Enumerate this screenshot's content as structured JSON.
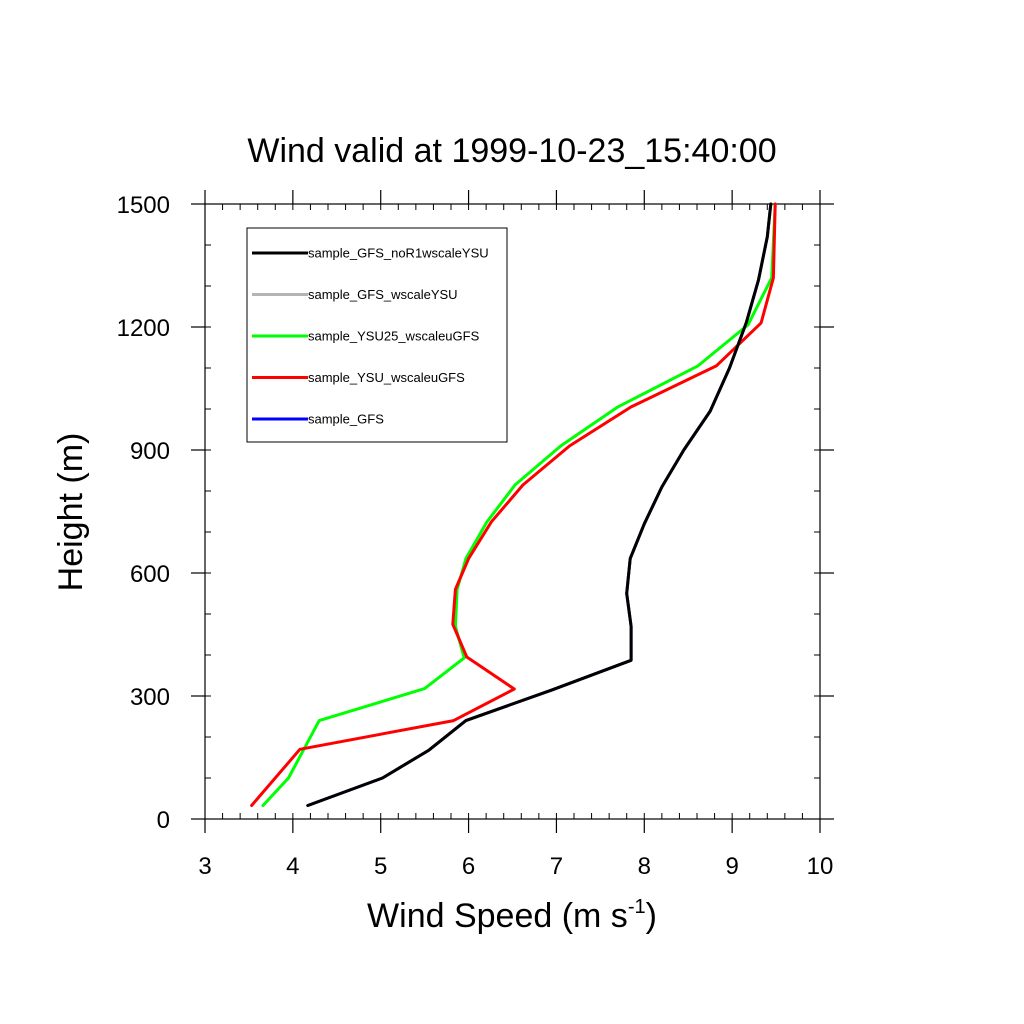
{
  "chart_data": {
    "type": "line",
    "title": "Wind valid at 1999-10-23_15:40:00",
    "xlabel": "Wind Speed (m s",
    "xlabel_superscript": "-1",
    "xlabel_suffix": ")",
    "ylabel": "Height (m)",
    "xlim": [
      3,
      10
    ],
    "ylim": [
      0,
      1500
    ],
    "xticks": [
      "3",
      "4",
      "5",
      "6",
      "7",
      "8",
      "9",
      "10"
    ],
    "yticks": [
      "0",
      "300",
      "600",
      "900",
      "1200",
      "1500"
    ],
    "grid": false,
    "legend_position": "top-left",
    "series": [
      {
        "name": "sample_GFS",
        "color": "#0000ff",
        "points": [
          [
            4.17,
            33
          ],
          [
            5.02,
            100
          ],
          [
            5.55,
            168
          ],
          [
            5.97,
            240
          ],
          [
            6.95,
            315
          ],
          [
            7.85,
            387
          ],
          [
            7.85,
            470
          ],
          [
            7.8,
            550
          ],
          [
            7.84,
            635
          ],
          [
            8.0,
            720
          ],
          [
            8.2,
            810
          ],
          [
            8.45,
            900
          ],
          [
            8.75,
            995
          ],
          [
            8.97,
            1100
          ],
          [
            9.16,
            1210
          ],
          [
            9.3,
            1315
          ],
          [
            9.4,
            1420
          ],
          [
            9.44,
            1500
          ]
        ]
      },
      {
        "name": "sample_GFS_wscaleYSU",
        "color": "#b4b4b4",
        "points": [
          [
            4.17,
            33
          ],
          [
            5.02,
            100
          ],
          [
            5.55,
            168
          ],
          [
            5.97,
            240
          ],
          [
            6.95,
            315
          ],
          [
            7.85,
            387
          ],
          [
            7.85,
            470
          ],
          [
            7.8,
            550
          ],
          [
            7.84,
            635
          ],
          [
            8.0,
            720
          ],
          [
            8.2,
            810
          ],
          [
            8.45,
            900
          ],
          [
            8.75,
            995
          ],
          [
            8.97,
            1100
          ],
          [
            9.16,
            1210
          ],
          [
            9.3,
            1315
          ],
          [
            9.4,
            1420
          ],
          [
            9.44,
            1500
          ]
        ]
      },
      {
        "name": "sample_YSU25_wscaleuGFS",
        "color": "#00ff00",
        "points": [
          [
            3.66,
            33
          ],
          [
            3.95,
            100
          ],
          [
            4.3,
            240
          ],
          [
            5.5,
            318
          ],
          [
            5.95,
            393
          ],
          [
            5.85,
            470
          ],
          [
            5.87,
            560
          ],
          [
            5.97,
            635
          ],
          [
            6.21,
            725
          ],
          [
            6.53,
            815
          ],
          [
            7.05,
            910
          ],
          [
            7.7,
            1005
          ],
          [
            8.61,
            1105
          ],
          [
            9.18,
            1205
          ],
          [
            9.45,
            1320
          ],
          [
            9.49,
            1500
          ]
        ]
      },
      {
        "name": "sample_YSU_wscaleuGFS",
        "color": "#ff0000",
        "points": [
          [
            3.53,
            33
          ],
          [
            4.08,
            170
          ],
          [
            5.83,
            240
          ],
          [
            6.52,
            317
          ],
          [
            5.98,
            395
          ],
          [
            5.82,
            475
          ],
          [
            5.85,
            560
          ],
          [
            6.0,
            635
          ],
          [
            6.26,
            725
          ],
          [
            6.62,
            815
          ],
          [
            7.15,
            910
          ],
          [
            7.85,
            1005
          ],
          [
            8.82,
            1105
          ],
          [
            9.33,
            1210
          ],
          [
            9.47,
            1320
          ],
          [
            9.49,
            1500
          ]
        ]
      },
      {
        "name": "sample_GFS_noR1wscaleYSU",
        "color": "#000000",
        "points": [
          [
            4.17,
            33
          ],
          [
            5.02,
            100
          ],
          [
            5.55,
            168
          ],
          [
            5.97,
            240
          ],
          [
            6.95,
            315
          ],
          [
            7.85,
            387
          ],
          [
            7.85,
            470
          ],
          [
            7.8,
            550
          ],
          [
            7.84,
            635
          ],
          [
            8.0,
            720
          ],
          [
            8.2,
            810
          ],
          [
            8.45,
            900
          ],
          [
            8.75,
            995
          ],
          [
            8.97,
            1100
          ],
          [
            9.16,
            1210
          ],
          [
            9.3,
            1315
          ],
          [
            9.4,
            1420
          ],
          [
            9.44,
            1500
          ]
        ]
      }
    ],
    "legend_order": [
      "sample_GFS_noR1wscaleYSU",
      "sample_GFS_wscaleYSU",
      "sample_YSU25_wscaleuGFS",
      "sample_YSU_wscaleuGFS",
      "sample_GFS"
    ]
  }
}
